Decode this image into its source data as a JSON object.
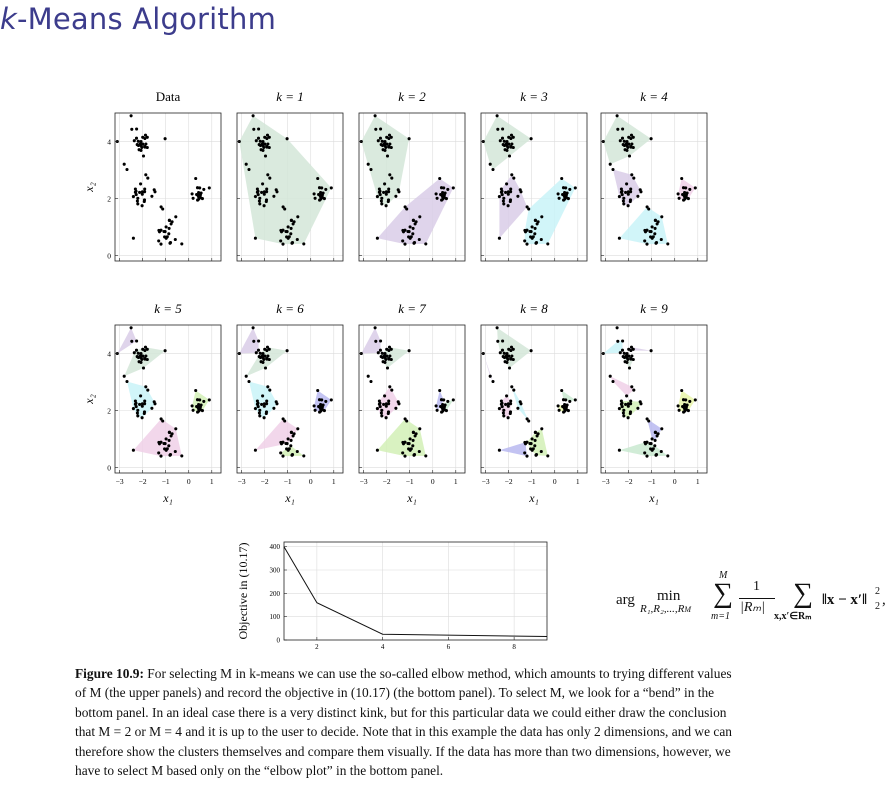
{
  "slide": {
    "title_prefix": "k",
    "title_rest": "-Means Algorithm"
  },
  "panels": {
    "titles": [
      "Data",
      "k = 1",
      "k = 2",
      "k = 3",
      "k = 4",
      "k = 5",
      "k = 6",
      "k = 7",
      "k = 8",
      "k = 9"
    ],
    "xlabel": "x₁",
    "ylabel": "x₂",
    "x_ticks": [
      "−3",
      "−2",
      "−1",
      "0",
      "1"
    ],
    "y_ticks": [
      "0",
      "2",
      "4"
    ],
    "xlim": [
      -3.2,
      1.4
    ],
    "ylim": [
      -0.2,
      5.0
    ],
    "region_colors": [
      "#d4e6d8",
      "#d9cce8",
      "#c9f3f8",
      "#f0d0e8",
      "#d2f0b6",
      "#b8b8f0",
      "#c9e9d0",
      "#e8f4a8"
    ]
  },
  "chart_data": {
    "type": "line",
    "x": [
      1,
      2,
      4,
      9
    ],
    "y": [
      400,
      160,
      25,
      15
    ],
    "xlabel": "k",
    "ylabel": "Objective in (10.17)",
    "x_ticks": [
      2,
      4,
      6,
      8
    ],
    "y_ticks": [
      0,
      100,
      200,
      300,
      400
    ],
    "xlim": [
      1,
      9
    ],
    "ylim": [
      0,
      420
    ],
    "grid": true
  },
  "formula": {
    "arg": "arg",
    "min": "min",
    "min_sub": "R₁,R₂,...,R",
    "min_sub_M": "M",
    "sum1_top": "M",
    "sum1_bottom": "m=1",
    "frac_num": "1",
    "frac_den": "|Rₘ|",
    "sum2_bottom": "x,x′∈Rₘ",
    "norm": "‖x − x′‖",
    "norm_sup": "2",
    "norm_sub": "2",
    "trailing": ","
  },
  "caption": {
    "label": "Figure 10.9:",
    "text": "For selecting M in k-means we can use the so-called elbow method, which amounts to trying different values of M (the upper panels) and record the objective in (10.17) (the bottom panel). To select M, we look for a “bend” in the bottom panel. In an ideal case there is a very distinct kink, but for this particular data we could either draw the conclusion that M = 2 or M = 4 and it is up to the user to decide. Note that in this example the data has only 2 dimensions, and we can therefore show the clusters themselves and compare them visually. If the data has more than two dimensions, however, we have to select M based only on the “elbow plot” in the bottom panel."
  }
}
